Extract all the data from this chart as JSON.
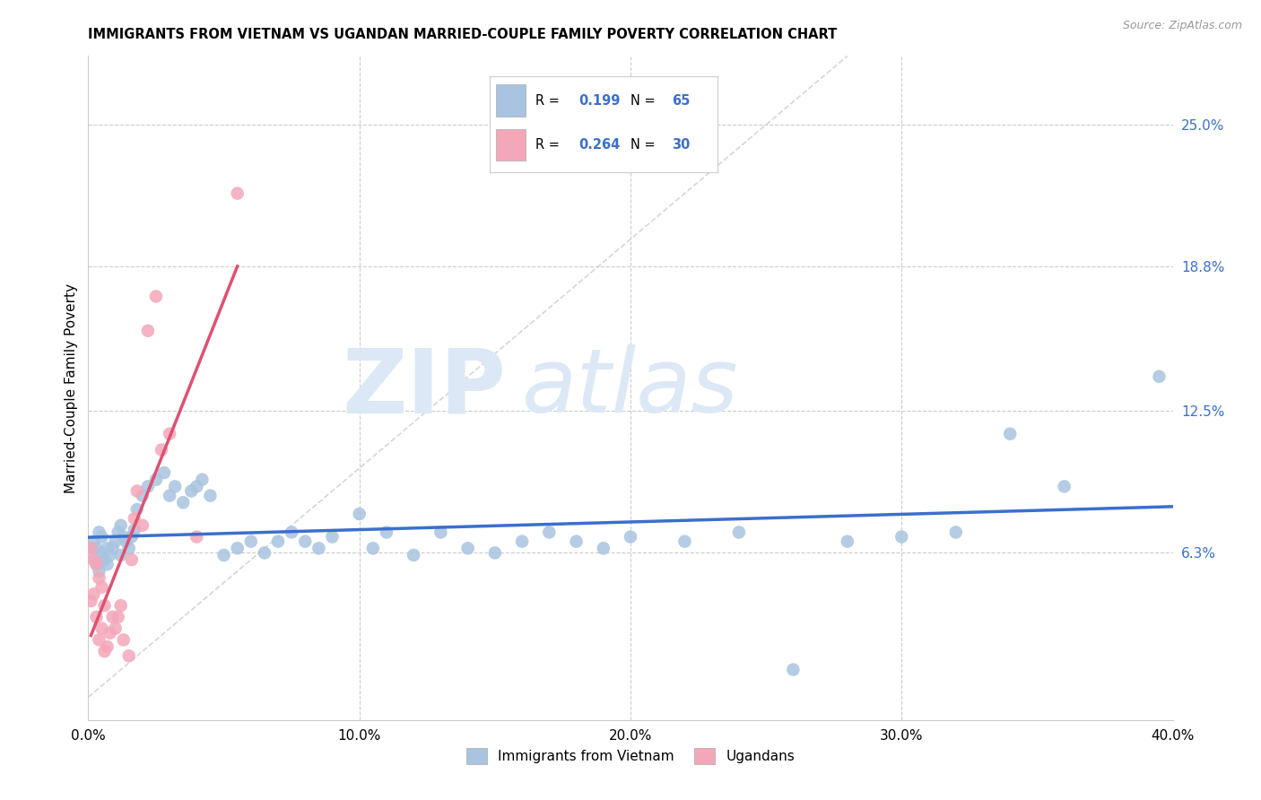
{
  "title": "IMMIGRANTS FROM VIETNAM VS UGANDAN MARRIED-COUPLE FAMILY POVERTY CORRELATION CHART",
  "source": "Source: ZipAtlas.com",
  "ylabel": "Married-Couple Family Poverty",
  "xmin": 0.0,
  "xmax": 0.4,
  "ymin": -0.01,
  "ymax": 0.28,
  "right_yticks": [
    0.063,
    0.125,
    0.188,
    0.25
  ],
  "right_yticklabels": [
    "6.3%",
    "12.5%",
    "18.8%",
    "25.0%"
  ],
  "xtick_labels": [
    "0.0%",
    "",
    "10.0%",
    "",
    "20.0%",
    "",
    "30.0%",
    "",
    "40.0%"
  ],
  "xtick_values": [
    0.0,
    0.05,
    0.1,
    0.15,
    0.2,
    0.25,
    0.3,
    0.35,
    0.4
  ],
  "legend1_r": "0.199",
  "legend1_n": "65",
  "legend2_r": "0.264",
  "legend2_n": "30",
  "blue_color": "#a8c4e0",
  "pink_color": "#f4a7b9",
  "blue_line_color": "#3b6fcc",
  "pink_line_color": "#e05070",
  "diag_line_color": "#cccccc",
  "legend_text_color": "#3b6fcc",
  "vietnam_x": [
    0.001,
    0.002,
    0.002,
    0.003,
    0.003,
    0.004,
    0.004,
    0.005,
    0.005,
    0.006,
    0.007,
    0.007,
    0.008,
    0.009,
    0.01,
    0.011,
    0.012,
    0.012,
    0.013,
    0.014,
    0.015,
    0.016,
    0.017,
    0.018,
    0.02,
    0.022,
    0.025,
    0.028,
    0.03,
    0.032,
    0.035,
    0.038,
    0.04,
    0.042,
    0.045,
    0.05,
    0.055,
    0.06,
    0.065,
    0.07,
    0.075,
    0.08,
    0.085,
    0.09,
    0.1,
    0.105,
    0.11,
    0.12,
    0.13,
    0.14,
    0.15,
    0.16,
    0.17,
    0.18,
    0.19,
    0.2,
    0.22,
    0.24,
    0.26,
    0.28,
    0.3,
    0.32,
    0.34,
    0.36,
    0.395
  ],
  "vietnam_y": [
    0.065,
    0.06,
    0.068,
    0.058,
    0.065,
    0.072,
    0.055,
    0.07,
    0.063,
    0.06,
    0.065,
    0.058,
    0.062,
    0.065,
    0.068,
    0.072,
    0.075,
    0.062,
    0.07,
    0.068,
    0.065,
    0.07,
    0.073,
    0.082,
    0.088,
    0.092,
    0.095,
    0.098,
    0.088,
    0.092,
    0.085,
    0.09,
    0.092,
    0.095,
    0.088,
    0.062,
    0.065,
    0.068,
    0.063,
    0.068,
    0.072,
    0.068,
    0.065,
    0.07,
    0.08,
    0.065,
    0.072,
    0.062,
    0.072,
    0.065,
    0.063,
    0.068,
    0.072,
    0.068,
    0.065,
    0.07,
    0.068,
    0.072,
    0.012,
    0.068,
    0.07,
    0.072,
    0.115,
    0.092,
    0.14
  ],
  "uganda_x": [
    0.001,
    0.001,
    0.002,
    0.002,
    0.003,
    0.003,
    0.004,
    0.004,
    0.005,
    0.005,
    0.006,
    0.006,
    0.007,
    0.008,
    0.009,
    0.01,
    0.011,
    0.012,
    0.013,
    0.015,
    0.016,
    0.017,
    0.018,
    0.02,
    0.022,
    0.025,
    0.027,
    0.03,
    0.04,
    0.055
  ],
  "uganda_y": [
    0.065,
    0.042,
    0.06,
    0.045,
    0.058,
    0.035,
    0.052,
    0.025,
    0.048,
    0.03,
    0.04,
    0.02,
    0.022,
    0.028,
    0.035,
    0.03,
    0.035,
    0.04,
    0.025,
    0.018,
    0.06,
    0.078,
    0.09,
    0.075,
    0.16,
    0.175,
    0.108,
    0.115,
    0.07,
    0.22
  ]
}
